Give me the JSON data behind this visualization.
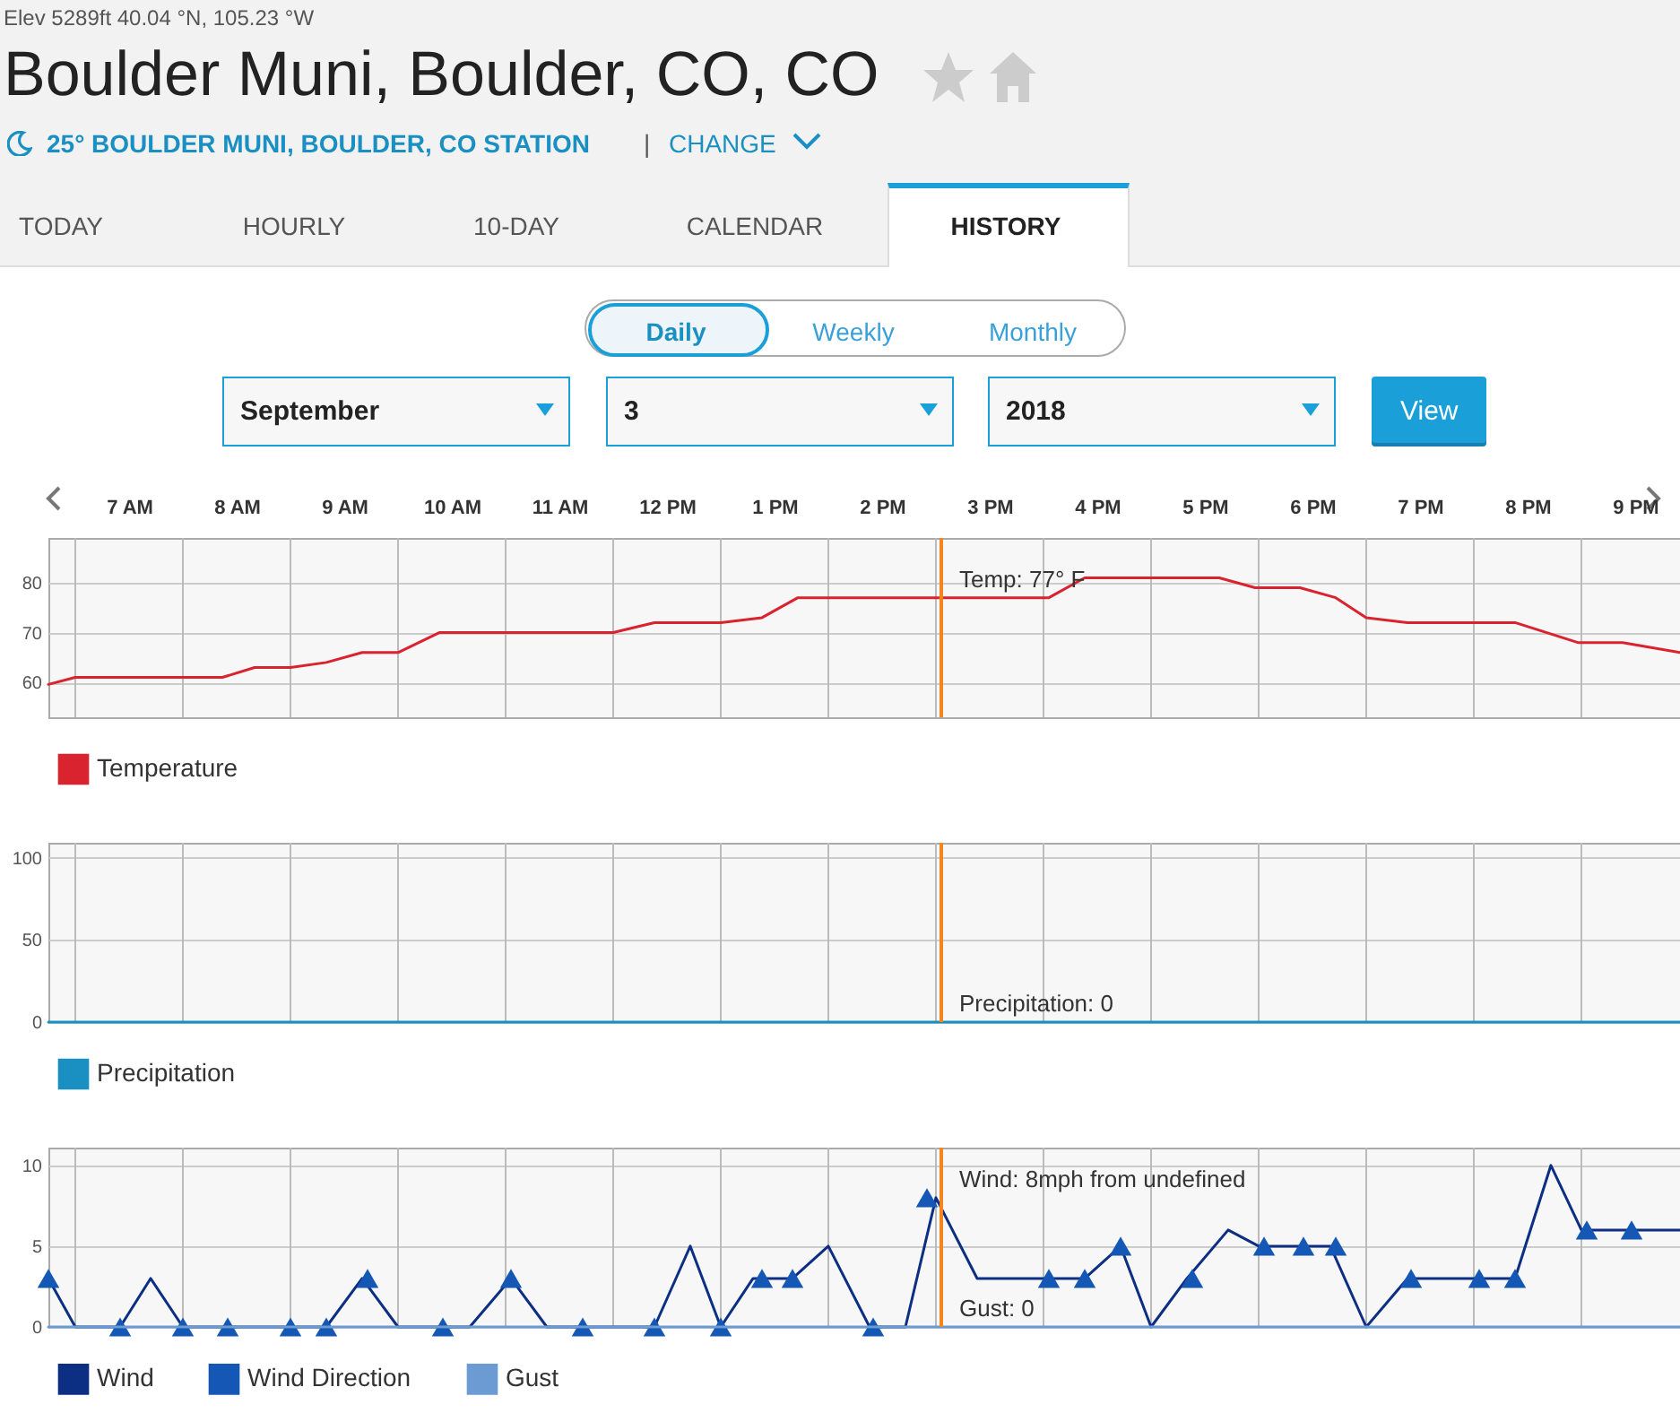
{
  "chart_data": [
    {
      "type": "other",
      "subtitle": "Elev 5289ft 40.04 °N, 105.23 °W",
      "title": "Boulder Muni, Boulder, CO, CO",
      "annotations": [
        "25° BOULDER MUNI, BOULDER, CO STATION",
        "|",
        "CHANGE",
        "TODAY",
        "HOURLY",
        "10-DAY",
        "CALENDAR",
        "HISTORY",
        "Daily",
        "Weekly",
        "Monthly",
        "September",
        "3",
        "2018",
        "View"
      ]
    },
    {
      "type": "line",
      "xticks": [
        {
          "value": "2018-09-03T07:00",
          "label": "7 AM"
        },
        {
          "value": "2018-09-03T08:00",
          "label": "8 AM"
        },
        {
          "value": "2018-09-03T09:00",
          "label": "9 AM"
        },
        {
          "value": "2018-09-03T10:00",
          "label": "10 AM"
        },
        {
          "value": "2018-09-03T11:00",
          "label": "11 AM"
        },
        {
          "value": "2018-09-03T12:00",
          "label": "12 PM"
        },
        {
          "value": "2018-09-03T13:00",
          "label": "1 PM"
        },
        {
          "value": "2018-09-03T14:00",
          "label": "2 PM"
        },
        {
          "value": "2018-09-03T15:00",
          "label": "3 PM"
        },
        {
          "value": "2018-09-03T16:00",
          "label": "4 PM"
        },
        {
          "value": "2018-09-03T17:00",
          "label": "5 PM"
        },
        {
          "value": "2018-09-03T18:00",
          "label": "6 PM"
        },
        {
          "value": "2018-09-03T19:00",
          "label": "7 PM"
        },
        {
          "value": "2018-09-03T20:00",
          "label": "8 PM"
        },
        {
          "value": "2018-09-03T21:00",
          "label": "9 PM"
        },
        {
          "value": "2018-09-03T06:30",
          "label": null
        },
        {
          "value": "2018-09-03T07:30",
          "label": null
        },
        {
          "value": "2018-09-03T08:30",
          "label": null
        },
        {
          "value": "2018-09-03T09:30",
          "label": null
        },
        {
          "value": "2018-09-03T10:30",
          "label": null
        },
        {
          "value": "2018-09-03T11:30",
          "label": null
        },
        {
          "value": "2018-09-03T12:30",
          "label": null
        },
        {
          "value": "2018-09-03T13:30",
          "label": null
        },
        {
          "value": "2018-09-03T14:30",
          "label": null
        },
        {
          "value": "2018-09-03T15:30",
          "label": null
        },
        {
          "value": "2018-09-03T16:30",
          "label": null
        },
        {
          "value": "2018-09-03T17:30",
          "label": null
        },
        {
          "value": "2018-09-03T18:30",
          "label": null
        },
        {
          "value": "2018-09-03T19:30",
          "label": null
        },
        {
          "value": "2018-09-03T20:30",
          "label": null
        }
      ],
      "xlim": [
        "2018-09-03T06:15",
        "2018-09-03T21:25"
      ],
      "ylim": [
        53,
        89
      ],
      "yticks": [
        60,
        70,
        80
      ],
      "grid": true,
      "legend": "bottom",
      "series": [
        {
          "name": "Temperature",
          "color": "#d9232e",
          "x": [
            "2018-09-03T06:15",
            "2018-09-03T06:30",
            "2018-09-03T07:52",
            "2018-09-03T08:10",
            "2018-09-03T08:30",
            "2018-09-03T08:50",
            "2018-09-03T09:10",
            "2018-09-03T09:30",
            "2018-09-03T09:53",
            "2018-09-03T11:30",
            "2018-09-03T11:53",
            "2018-09-03T12:30",
            "2018-09-03T12:53",
            "2018-09-03T13:13",
            "2018-09-03T14:33",
            "2018-09-03T15:33",
            "2018-09-03T15:53",
            "2018-09-03T17:08",
            "2018-09-03T17:28",
            "2018-09-03T17:53",
            "2018-09-03T18:13",
            "2018-09-03T18:30",
            "2018-09-03T18:53",
            "2018-09-03T19:53",
            "2018-09-03T20:28",
            "2018-09-03T20:53",
            "2018-09-03T21:25"
          ],
          "values": [
            59.6,
            61,
            61,
            63,
            63,
            64,
            66,
            66,
            70,
            70,
            72,
            72,
            73,
            77,
            77,
            77,
            81,
            81,
            79,
            79,
            77,
            73,
            72,
            72,
            68,
            68,
            66
          ]
        }
      ],
      "ref_lines": [
        {
          "axis": "x",
          "value": "2018-09-03T14:33",
          "color": "#f5861f"
        }
      ],
      "annotations": [
        {
          "text": "Temp: 77° F",
          "x": "2018-09-03T14:33",
          "y": 77
        }
      ]
    },
    {
      "type": "line",
      "xlim": [
        "2018-09-03T06:15",
        "2018-09-03T21:25"
      ],
      "xticks": [
        {
          "value": "2018-09-03T06:30",
          "label": null
        },
        {
          "value": "2018-09-03T07:30",
          "label": null
        },
        {
          "value": "2018-09-03T08:30",
          "label": null
        },
        {
          "value": "2018-09-03T09:30",
          "label": null
        },
        {
          "value": "2018-09-03T10:30",
          "label": null
        },
        {
          "value": "2018-09-03T11:30",
          "label": null
        },
        {
          "value": "2018-09-03T12:30",
          "label": null
        },
        {
          "value": "2018-09-03T13:30",
          "label": null
        },
        {
          "value": "2018-09-03T14:30",
          "label": null
        },
        {
          "value": "2018-09-03T15:30",
          "label": null
        },
        {
          "value": "2018-09-03T16:30",
          "label": null
        },
        {
          "value": "2018-09-03T17:30",
          "label": null
        },
        {
          "value": "2018-09-03T18:30",
          "label": null
        },
        {
          "value": "2018-09-03T19:30",
          "label": null
        },
        {
          "value": "2018-09-03T20:30",
          "label": null
        }
      ],
      "tick_labels": "y",
      "ylim": [
        0,
        109
      ],
      "yticks": [
        0,
        50,
        100
      ],
      "grid": true,
      "legend": "bottom",
      "series": [
        {
          "name": "Precipitation",
          "color": "#1a8fc2",
          "x": [
            "2018-09-03T06:15",
            "2018-09-03T21:25"
          ],
          "values": [
            0,
            0
          ]
        }
      ],
      "ref_lines": [
        {
          "axis": "x",
          "value": "2018-09-03T14:33",
          "color": "#f5861f"
        }
      ],
      "annotations": [
        {
          "text": "Precipitation: 0",
          "x": "2018-09-03T14:33",
          "y": 0
        }
      ]
    },
    {
      "type": "line",
      "xlim": [
        "2018-09-03T06:15",
        "2018-09-03T21:25"
      ],
      "xticks": [
        {
          "value": "2018-09-03T06:30",
          "label": null
        },
        {
          "value": "2018-09-03T07:30",
          "label": null
        },
        {
          "value": "2018-09-03T08:30",
          "label": null
        },
        {
          "value": "2018-09-03T09:30",
          "label": null
        },
        {
          "value": "2018-09-03T10:30",
          "label": null
        },
        {
          "value": "2018-09-03T11:30",
          "label": null
        },
        {
          "value": "2018-09-03T12:30",
          "label": null
        },
        {
          "value": "2018-09-03T13:30",
          "label": null
        },
        {
          "value": "2018-09-03T14:30",
          "label": null
        },
        {
          "value": "2018-09-03T15:30",
          "label": null
        },
        {
          "value": "2018-09-03T16:30",
          "label": null
        },
        {
          "value": "2018-09-03T17:30",
          "label": null
        },
        {
          "value": "2018-09-03T18:30",
          "label": null
        },
        {
          "value": "2018-09-03T19:30",
          "label": null
        },
        {
          "value": "2018-09-03T20:30",
          "label": null
        }
      ],
      "tick_labels": "y",
      "ylim": [
        0,
        11.1
      ],
      "yticks": [
        0,
        5,
        10
      ],
      "grid": true,
      "legend": "bottom",
      "series": [
        {
          "name": "Wind",
          "color": "#0c2f84",
          "x": [
            "2018-09-03T06:15",
            "2018-09-03T06:30",
            "2018-09-03T06:55",
            "2018-09-03T07:12",
            "2018-09-03T07:30",
            "2018-09-03T08:50",
            "2018-09-03T09:10",
            "2018-09-03T09:30",
            "2018-09-03T10:10",
            "2018-09-03T10:33",
            "2018-09-03T10:53",
            "2018-09-03T11:53",
            "2018-09-03T12:13",
            "2018-09-03T12:30",
            "2018-09-03T12:48",
            "2018-09-03T13:10",
            "2018-09-03T13:30",
            "2018-09-03T13:53",
            "2018-09-03T14:13",
            "2018-09-03T14:30",
            "2018-09-03T14:53",
            "2018-09-03T15:33",
            "2018-09-03T15:53",
            "2018-09-03T16:13",
            "2018-09-03T16:30",
            "2018-09-03T16:50",
            "2018-09-03T17:13",
            "2018-09-03T17:30",
            "2018-09-03T18:10",
            "2018-09-03T18:30",
            "2018-09-03T18:53",
            "2018-09-03T19:53",
            "2018-09-03T20:13",
            "2018-09-03T20:30",
            "2018-09-03T21:25"
          ],
          "values": [
            3,
            0,
            0,
            3,
            0,
            0,
            3,
            0,
            0,
            3,
            0,
            0,
            5,
            0,
            3,
            3,
            5,
            0,
            0,
            8,
            3,
            3,
            3,
            5,
            0,
            3,
            6,
            5,
            5,
            0,
            3,
            3,
            10,
            6,
            6
          ]
        },
        {
          "name": "Wind Direction",
          "type": "scatter",
          "marker": "triangle",
          "color": "#1557b4",
          "x": [
            "2018-09-03T06:15",
            "2018-09-03T06:55",
            "2018-09-03T07:30",
            "2018-09-03T07:55",
            "2018-09-03T08:30",
            "2018-09-03T08:50",
            "2018-09-03T09:13",
            "2018-09-03T09:55",
            "2018-09-03T10:33",
            "2018-09-03T11:13",
            "2018-09-03T11:53",
            "2018-09-03T12:30",
            "2018-09-03T12:53",
            "2018-09-03T13:10",
            "2018-09-03T13:55",
            "2018-09-03T14:25",
            "2018-09-03T15:33",
            "2018-09-03T15:53",
            "2018-09-03T16:13",
            "2018-09-03T16:53",
            "2018-09-03T17:33",
            "2018-09-03T17:55",
            "2018-09-03T18:13",
            "2018-09-03T18:55",
            "2018-09-03T19:33",
            "2018-09-03T19:53",
            "2018-09-03T20:33",
            "2018-09-03T20:58"
          ],
          "values": [
            3,
            0,
            0,
            0,
            0,
            0,
            3,
            0,
            3,
            0,
            0,
            0,
            3,
            3,
            0,
            8,
            3,
            3,
            5,
            3,
            5,
            5,
            5,
            3,
            3,
            3,
            6,
            6
          ]
        },
        {
          "name": "Gust",
          "color": "#6b9bd2",
          "x": [
            "2018-09-03T06:15",
            "2018-09-03T21:25"
          ],
          "values": [
            0,
            0
          ]
        }
      ],
      "ref_lines": [
        {
          "axis": "x",
          "value": "2018-09-03T14:33",
          "color": "#f5861f"
        }
      ],
      "annotations": [
        {
          "text": "Wind: 8mph from undefined",
          "x": "2018-09-03T14:33",
          "y": 8
        },
        {
          "text": "Gust: 0",
          "x": "2018-09-03T14:33",
          "y": 0
        }
      ]
    }
  ]
}
